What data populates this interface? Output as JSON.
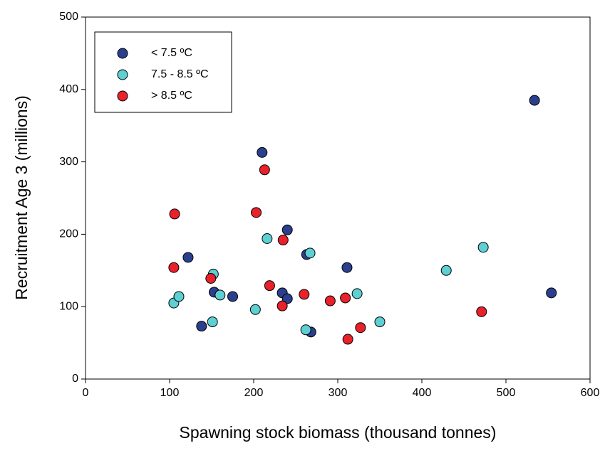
{
  "chart_data": {
    "type": "scatter",
    "x_label": "Spawning stock biomass (thousand tonnes)",
    "y_label": "Recruitment Age 3 (millions)",
    "xlim": [
      0,
      600
    ],
    "xticks": [
      0,
      100,
      200,
      300,
      400,
      500,
      600
    ],
    "ylim": [
      0,
      500
    ],
    "yticks": [
      0,
      100,
      200,
      300,
      400,
      500
    ],
    "legend_position": "upper-left",
    "series": [
      {
        "name": "< 7.5 ºC",
        "color": "#2b3f8f",
        "x": [
          534,
          554,
          210,
          240,
          122,
          263,
          311,
          153,
          175,
          234,
          240,
          138,
          268
        ],
        "values": [
          385,
          119,
          313,
          206,
          168,
          172,
          154,
          120,
          114,
          119,
          111,
          73,
          65
        ]
      },
      {
        "name": "7.5 - 8.5 ºC",
        "color": "#5ecfd3",
        "x": [
          105,
          111,
          152,
          160,
          151,
          202,
          216,
          267,
          262,
          323,
          350,
          429,
          473
        ],
        "values": [
          105,
          114,
          145,
          116,
          79,
          96,
          194,
          174,
          68,
          118,
          79,
          150,
          182
        ]
      },
      {
        "name": "> 8.5 ºC",
        "color": "#e8212a",
        "x": [
          106,
          105,
          149,
          213,
          203,
          235,
          219,
          234,
          260,
          291,
          309,
          327,
          312,
          471
        ],
        "values": [
          228,
          154,
          139,
          289,
          230,
          192,
          129,
          101,
          117,
          108,
          112,
          71,
          55,
          93
        ]
      }
    ]
  }
}
